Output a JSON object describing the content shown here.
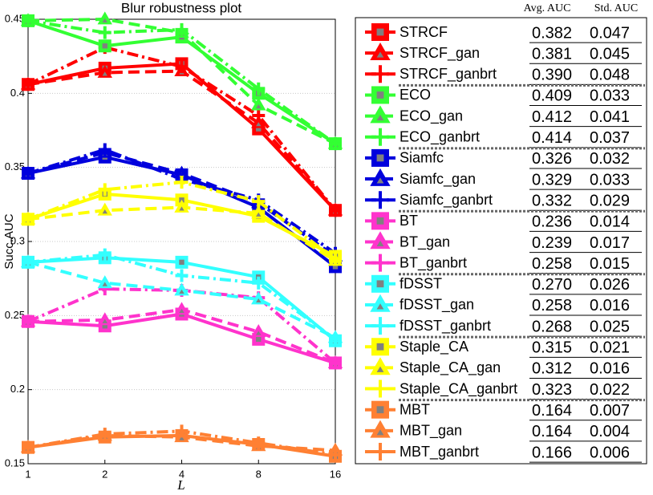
{
  "chart_data": {
    "type": "line",
    "title": "Blur robustness plot",
    "x_label": "L",
    "y_label": "Succ.AUC",
    "categories": [
      "1",
      "2",
      "4",
      "8",
      "16"
    ],
    "ylim": [
      0.15,
      0.45
    ],
    "yticks": [
      0.15,
      0.2,
      0.25,
      0.3,
      0.35,
      0.4,
      0.45
    ],
    "grid": true,
    "legend_columns": [
      "Avg. AUC",
      "Std. AUC"
    ],
    "series": [
      {
        "name": "STRCF",
        "color": "#ff0000",
        "marker": "square",
        "dash": "solid",
        "values": [
          0.406,
          0.417,
          0.42,
          0.376,
          0.321
        ],
        "avg_auc": "0.382",
        "std_auc": "0.047"
      },
      {
        "name": "STRCF_gan",
        "color": "#ff0000",
        "marker": "triangle",
        "dash": "dashed",
        "values": [
          0.406,
          0.414,
          0.415,
          0.38,
          0.321
        ],
        "avg_auc": "0.381",
        "std_auc": "0.045"
      },
      {
        "name": "STRCF_ganbrt",
        "color": "#ff0000",
        "marker": "plus",
        "dash": "dashdot",
        "values": [
          0.406,
          0.431,
          0.418,
          0.385,
          0.321
        ],
        "avg_auc": "0.390",
        "std_auc": "0.048"
      },
      {
        "name": "ECO",
        "color": "#33ff33",
        "marker": "square",
        "dash": "solid",
        "values": [
          0.449,
          0.432,
          0.438,
          0.4,
          0.366
        ],
        "avg_auc": "0.409",
        "std_auc": "0.033"
      },
      {
        "name": "ECO_gan",
        "color": "#33ff33",
        "marker": "triangle",
        "dash": "dashed",
        "values": [
          0.449,
          0.45,
          0.441,
          0.392,
          0.366
        ],
        "avg_auc": "0.412",
        "std_auc": "0.041"
      },
      {
        "name": "ECO_ganbrt",
        "color": "#33ff33",
        "marker": "plus",
        "dash": "dashdot",
        "values": [
          0.449,
          0.441,
          0.443,
          0.403,
          0.366
        ],
        "avg_auc": "0.414",
        "std_auc": "0.037"
      },
      {
        "name": "Siamfc",
        "color": "#0000dd",
        "marker": "square",
        "dash": "solid",
        "values": [
          0.346,
          0.357,
          0.345,
          0.323,
          0.283
        ],
        "avg_auc": "0.326",
        "std_auc": "0.032"
      },
      {
        "name": "Siamfc_gan",
        "color": "#0000dd",
        "marker": "triangle",
        "dash": "dashed",
        "values": [
          0.346,
          0.36,
          0.346,
          0.326,
          0.29
        ],
        "avg_auc": "0.329",
        "std_auc": "0.033"
      },
      {
        "name": "Siamfc_ganbrt",
        "color": "#0000dd",
        "marker": "plus",
        "dash": "dashdot",
        "values": [
          0.346,
          0.362,
          0.342,
          0.328,
          0.292
        ],
        "avg_auc": "0.332",
        "std_auc": "0.029"
      },
      {
        "name": "BT",
        "color": "#ff33cc",
        "marker": "square",
        "dash": "solid",
        "values": [
          0.246,
          0.243,
          0.251,
          0.234,
          0.218
        ],
        "avg_auc": "0.236",
        "std_auc": "0.014"
      },
      {
        "name": "BT_gan",
        "color": "#ff33cc",
        "marker": "triangle",
        "dash": "dashed",
        "values": [
          0.246,
          0.247,
          0.254,
          0.239,
          0.218
        ],
        "avg_auc": "0.239",
        "std_auc": "0.017"
      },
      {
        "name": "BT_ganbrt",
        "color": "#ff33cc",
        "marker": "plus",
        "dash": "dashdot",
        "values": [
          0.246,
          0.268,
          0.267,
          0.262,
          0.218
        ],
        "avg_auc": "0.258",
        "std_auc": "0.015"
      },
      {
        "name": "fDSST",
        "color": "#33ffff",
        "marker": "square",
        "dash": "solid",
        "values": [
          0.286,
          0.289,
          0.286,
          0.276,
          0.233
        ],
        "avg_auc": "0.270",
        "std_auc": "0.026"
      },
      {
        "name": "fDSST_gan",
        "color": "#33ffff",
        "marker": "triangle",
        "dash": "dashed",
        "values": [
          0.286,
          0.272,
          0.267,
          0.261,
          0.235
        ],
        "avg_auc": "0.258",
        "std_auc": "0.016"
      },
      {
        "name": "fDSST_ganbrt",
        "color": "#33ffff",
        "marker": "plus",
        "dash": "dashdot",
        "values": [
          0.286,
          0.291,
          0.277,
          0.272,
          0.234
        ],
        "avg_auc": "0.268",
        "std_auc": "0.025"
      },
      {
        "name": "Staple_CA",
        "color": "#ffff00",
        "marker": "square",
        "dash": "solid",
        "values": [
          0.315,
          0.332,
          0.328,
          0.317,
          0.29
        ],
        "avg_auc": "0.315",
        "std_auc": "0.021"
      },
      {
        "name": "Staple_CA_gan",
        "color": "#ffff00",
        "marker": "triangle",
        "dash": "dashed",
        "values": [
          0.315,
          0.321,
          0.323,
          0.319,
          0.287
        ],
        "avg_auc": "0.312",
        "std_auc": "0.016"
      },
      {
        "name": "Staple_CA_ganbrt",
        "color": "#ffff00",
        "marker": "plus",
        "dash": "dashdot",
        "values": [
          0.315,
          0.335,
          0.34,
          0.327,
          0.288
        ],
        "avg_auc": "0.323",
        "std_auc": "0.022"
      },
      {
        "name": "MBT",
        "color": "#ff8033",
        "marker": "square",
        "dash": "solid",
        "values": [
          0.161,
          0.168,
          0.169,
          0.163,
          0.155
        ],
        "avg_auc": "0.164",
        "std_auc": "0.007"
      },
      {
        "name": "MBT_gan",
        "color": "#ff8033",
        "marker": "triangle",
        "dash": "dashed",
        "values": [
          0.161,
          0.169,
          0.168,
          0.162,
          0.159
        ],
        "avg_auc": "0.164",
        "std_auc": "0.004"
      },
      {
        "name": "MBT_ganbrt",
        "color": "#ff8033",
        "marker": "plus",
        "dash": "dashdot",
        "values": [
          0.161,
          0.17,
          0.172,
          0.164,
          0.156
        ],
        "avg_auc": "0.166",
        "std_auc": "0.006"
      }
    ]
  }
}
